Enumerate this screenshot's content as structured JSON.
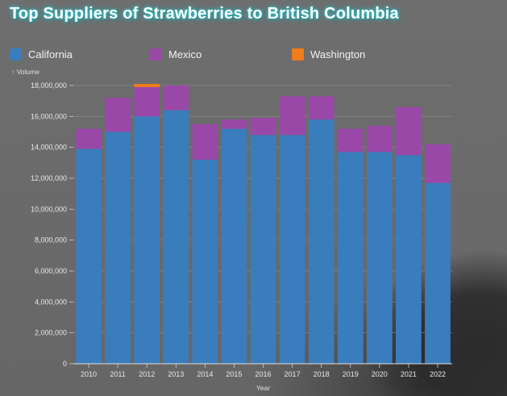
{
  "title": "Top Suppliers of Strawberries to British Columbia",
  "legend": [
    {
      "label": "California",
      "color": "#3a7dbc"
    },
    {
      "label": "Mexico",
      "color": "#9a48a8"
    },
    {
      "label": "Washington",
      "color": "#f07d1a"
    }
  ],
  "chart_data": {
    "type": "bar",
    "stacked": true,
    "xlabel": "Year",
    "ylabel": "↑ Volume",
    "ylim": [
      0,
      18000000
    ],
    "yticks": [
      0,
      2000000,
      4000000,
      6000000,
      8000000,
      10000000,
      12000000,
      14000000,
      16000000,
      18000000
    ],
    "ytick_labels": [
      "0",
      "2,000,000",
      "4,000,000",
      "6,000,000",
      "8,000,000",
      "10,000,000",
      "12,000,000",
      "14,000,000",
      "16,000,000",
      "18,000,000"
    ],
    "grid": true,
    "legend_position": "top",
    "categories": [
      "2010",
      "2011",
      "2012",
      "2013",
      "2014",
      "2015",
      "2016",
      "2017",
      "2018",
      "2019",
      "2020",
      "2021",
      "2022"
    ],
    "series": [
      {
        "name": "California",
        "color": "#3a7dbc",
        "values": [
          13900000,
          15000000,
          16000000,
          16400000,
          13200000,
          15200000,
          14800000,
          14800000,
          15800000,
          13700000,
          13700000,
          13500000,
          11700000
        ]
      },
      {
        "name": "Mexico",
        "color": "#9a48a8",
        "values": [
          1300000,
          2200000,
          1900000,
          1600000,
          2300000,
          600000,
          1100000,
          2500000,
          1500000,
          1500000,
          1700000,
          3100000,
          2500000
        ]
      },
      {
        "name": "Washington",
        "color": "#f07d1a",
        "values": [
          0,
          0,
          200000,
          0,
          0,
          0,
          0,
          0,
          0,
          0,
          0,
          0,
          0
        ]
      }
    ]
  }
}
